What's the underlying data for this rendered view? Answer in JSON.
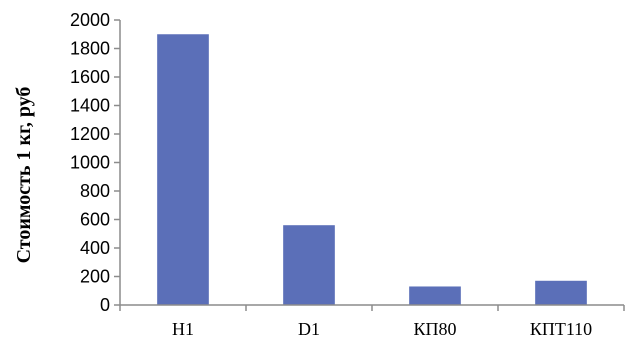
{
  "chart_data": {
    "type": "bar",
    "title": "",
    "xlabel": "",
    "ylabel": "Стоимость 1 кг, руб",
    "categories": [
      "H1",
      "D1",
      "КП80",
      "КПТ110"
    ],
    "values": [
      1900,
      560,
      130,
      170
    ],
    "ylim": [
      0,
      2000
    ],
    "yticks": [
      "0",
      "200",
      "400",
      "600",
      "800",
      "1000",
      "1200",
      "1400",
      "1600",
      "1800",
      "2000"
    ],
    "grid": false,
    "legend": "none",
    "bar_color": "#5b6fb8"
  }
}
